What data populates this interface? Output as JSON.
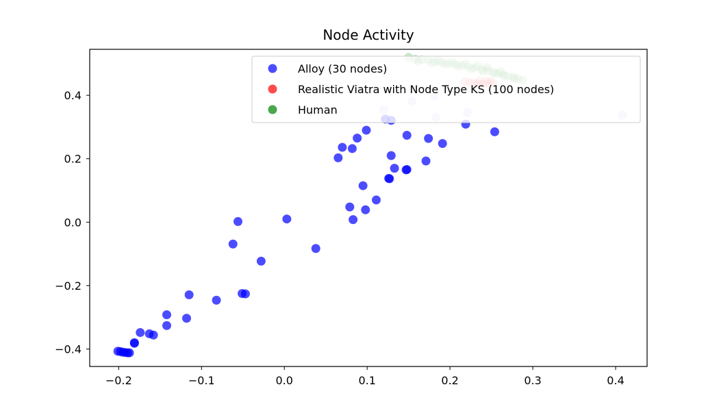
{
  "chart_data": {
    "type": "scatter",
    "title": "Node Activity",
    "xlabel": "",
    "ylabel": "",
    "xlim": [
      -0.235,
      0.438
    ],
    "ylim": [
      -0.455,
      0.545
    ],
    "x_ticks": [
      -0.2,
      -0.1,
      0.0,
      0.1,
      0.2,
      0.3,
      0.4
    ],
    "x_tick_labels": [
      "−0.2",
      "−0.1",
      "0.0",
      "0.1",
      "0.2",
      "0.3",
      "0.4"
    ],
    "y_ticks": [
      -0.4,
      -0.2,
      0.0,
      0.2,
      0.4
    ],
    "y_tick_labels": [
      "−0.4",
      "−0.2",
      "0.0",
      "0.2",
      "0.4"
    ],
    "grid": false,
    "legend_position": "top-right",
    "series": [
      {
        "name": "Alloy (30 nodes)",
        "color": "#0000ff",
        "alpha": 0.7,
        "points": [
          [
            -0.201,
            -0.407
          ],
          [
            -0.198,
            -0.408
          ],
          [
            -0.195,
            -0.41
          ],
          [
            -0.192,
            -0.411
          ],
          [
            -0.189,
            -0.412
          ],
          [
            -0.187,
            -0.412
          ],
          [
            -0.181,
            -0.382
          ],
          [
            -0.181,
            -0.38
          ],
          [
            -0.174,
            -0.348
          ],
          [
            -0.163,
            -0.352
          ],
          [
            -0.158,
            -0.356
          ],
          [
            -0.142,
            -0.326
          ],
          [
            -0.142,
            -0.292
          ],
          [
            -0.118,
            -0.303
          ],
          [
            -0.115,
            -0.229
          ],
          [
            -0.082,
            -0.246
          ],
          [
            -0.062,
            -0.069
          ],
          [
            -0.056,
            0.002
          ],
          [
            -0.051,
            -0.225
          ],
          [
            -0.047,
            -0.226
          ],
          [
            -0.028,
            -0.123
          ],
          [
            0.003,
            0.01
          ],
          [
            0.038,
            -0.083
          ],
          [
            0.065,
            0.203
          ],
          [
            0.07,
            0.236
          ],
          [
            0.079,
            0.048
          ],
          [
            0.082,
            0.232
          ],
          [
            0.083,
            0.008
          ],
          [
            0.088,
            0.265
          ],
          [
            0.095,
            0.115
          ],
          [
            0.098,
            0.039
          ],
          [
            0.099,
            0.29
          ],
          [
            0.111,
            0.07
          ],
          [
            0.122,
            0.325
          ],
          [
            0.126,
            0.138
          ],
          [
            0.127,
            0.137
          ],
          [
            0.129,
            0.321
          ],
          [
            0.129,
            0.21
          ],
          [
            0.133,
            0.17
          ],
          [
            0.147,
            0.165
          ],
          [
            0.148,
            0.166
          ],
          [
            0.148,
            0.274
          ],
          [
            0.171,
            0.193
          ],
          [
            0.174,
            0.264
          ],
          [
            0.191,
            0.248
          ],
          [
            0.219,
            0.309
          ],
          [
            0.254,
            0.285
          ]
        ]
      },
      {
        "name": "Realistic Viatra with Node Type KS (100 nodes)",
        "color": "#ff0000",
        "alpha": 0.7,
        "points": [
          [
            0.218,
            0.443
          ],
          [
            0.224,
            0.44
          ],
          [
            0.229,
            0.438
          ],
          [
            0.234,
            0.437
          ],
          [
            0.24,
            0.436
          ],
          [
            0.246,
            0.437
          ],
          [
            0.252,
            0.438
          ],
          [
            0.236,
            0.445
          ],
          [
            0.243,
            0.444
          ],
          [
            0.249,
            0.445
          ]
        ]
      },
      {
        "name": "Human",
        "color": "#008000",
        "alpha": 0.7,
        "points": [
          [
            0.15,
            0.52
          ],
          [
            0.158,
            0.514
          ],
          [
            0.166,
            0.512
          ],
          [
            0.174,
            0.51
          ],
          [
            0.182,
            0.506
          ],
          [
            0.19,
            0.503
          ],
          [
            0.198,
            0.5
          ],
          [
            0.206,
            0.497
          ],
          [
            0.214,
            0.494
          ],
          [
            0.222,
            0.49
          ],
          [
            0.23,
            0.486
          ],
          [
            0.238,
            0.482
          ],
          [
            0.246,
            0.478
          ],
          [
            0.252,
            0.474
          ],
          [
            0.258,
            0.469
          ],
          [
            0.264,
            0.465
          ],
          [
            0.27,
            0.461
          ],
          [
            0.276,
            0.457
          ],
          [
            0.282,
            0.452
          ],
          [
            0.288,
            0.448
          ],
          [
            0.162,
            0.508
          ],
          [
            0.178,
            0.502
          ],
          [
            0.194,
            0.498
          ],
          [
            0.21,
            0.492
          ],
          [
            0.226,
            0.484
          ],
          [
            0.24,
            0.476
          ],
          [
            0.254,
            0.469
          ],
          [
            0.266,
            0.461
          ],
          [
            0.278,
            0.453
          ],
          [
            0.245,
            0.488
          ],
          [
            0.203,
            0.504
          ],
          [
            0.186,
            0.509
          ],
          [
            0.219,
            0.499
          ],
          [
            0.233,
            0.493
          ],
          [
            0.261,
            0.474
          ]
        ]
      }
    ],
    "faded_points": [
      [
        0.12,
        0.355
      ],
      [
        0.154,
        0.382
      ],
      [
        0.181,
        0.398
      ],
      [
        0.183,
        0.331
      ],
      [
        0.221,
        0.346
      ],
      [
        0.408,
        0.337
      ]
    ]
  }
}
